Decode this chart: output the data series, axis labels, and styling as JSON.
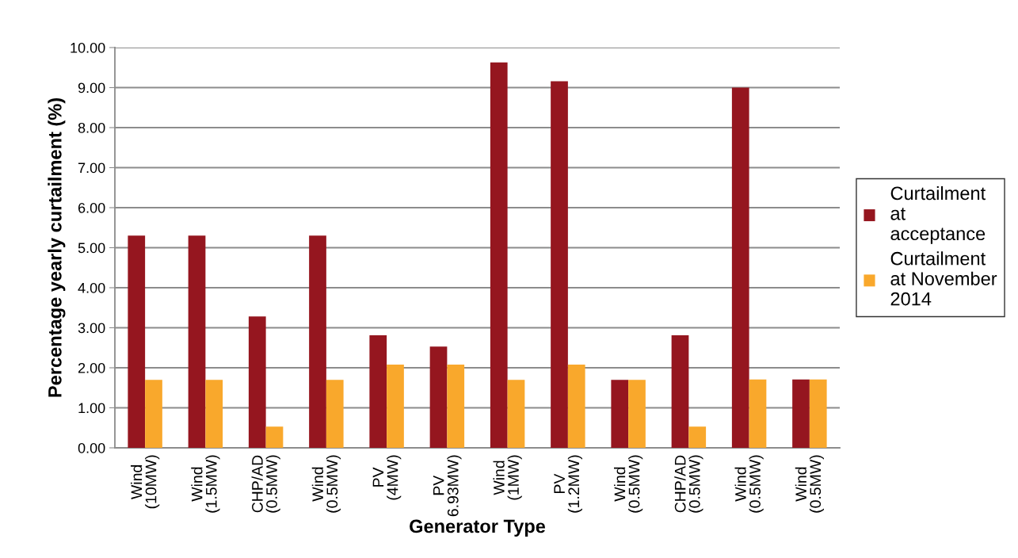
{
  "chart_data": {
    "type": "bar",
    "xlabel": "Generator Type",
    "ylabel": "Percentage yearly curtailment (%)",
    "categories": [
      "Wind\n(10MW)",
      "Wind\n(1.5MW)",
      "CHP/AD\n(0.5MW)",
      "Wind\n(0.5MW)",
      "PV\n(4MW)",
      "PV\n6.93MW)",
      "Wind\n(1MW)",
      "PV\n(1.2MW)",
      "Wind\n(0.5MW)",
      "CHP/AD\n(0.5MW)",
      "Wind\n(0.5MW)",
      "Wind\n(0.5MW)"
    ],
    "series": [
      {
        "name": "Curtailment\nat\nacceptance",
        "color": "#95161f",
        "values": [
          5.3,
          5.3,
          3.28,
          5.3,
          2.81,
          2.53,
          9.63,
          9.16,
          1.7,
          2.81,
          9.0,
          1.71
        ]
      },
      {
        "name": "Curtailment\nat November\n2014",
        "color": "#f9a82c",
        "values": [
          1.7,
          1.7,
          0.53,
          1.7,
          2.08,
          2.08,
          1.7,
          2.08,
          1.7,
          0.53,
          1.71,
          1.71
        ]
      }
    ],
    "ylim": [
      0,
      10
    ],
    "yticks": [
      {
        "value": 0,
        "label": "0.00"
      },
      {
        "value": 1,
        "label": "1.00"
      },
      {
        "value": 2,
        "label": "2.00"
      },
      {
        "value": 3,
        "label": "3.00"
      },
      {
        "value": 4,
        "label": "4.00"
      },
      {
        "value": 5,
        "label": "5.00"
      },
      {
        "value": 6,
        "label": "6.00"
      },
      {
        "value": 7,
        "label": "7.00"
      },
      {
        "value": 8,
        "label": "8.00"
      },
      {
        "value": 9,
        "label": "9.00"
      },
      {
        "value": 10,
        "label": "10.00"
      }
    ],
    "grid": "y",
    "legend": "right"
  }
}
